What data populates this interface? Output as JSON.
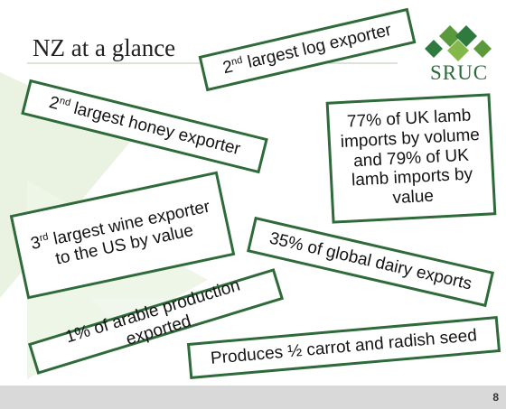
{
  "slide": {
    "title": "NZ at a glance",
    "logo": "SRUC",
    "page_number": "8",
    "boxes": [
      {
        "parts": [
          "2",
          "nd",
          " largest log exporter"
        ]
      },
      {
        "parts": [
          "2",
          "nd",
          " largest honey exporter"
        ]
      },
      {
        "parts": [
          "77% of UK lamb imports by volume and 79% of UK lamb imports by value"
        ]
      },
      {
        "parts": [
          "3",
          "rd",
          " largest wine exporter to the US by value"
        ]
      },
      {
        "parts": [
          "35% of global dairy exports"
        ]
      },
      {
        "parts": [
          "1% of arable production exported"
        ]
      },
      {
        "parts": [
          "Produces ½ carrot and radish seed"
        ]
      }
    ]
  }
}
